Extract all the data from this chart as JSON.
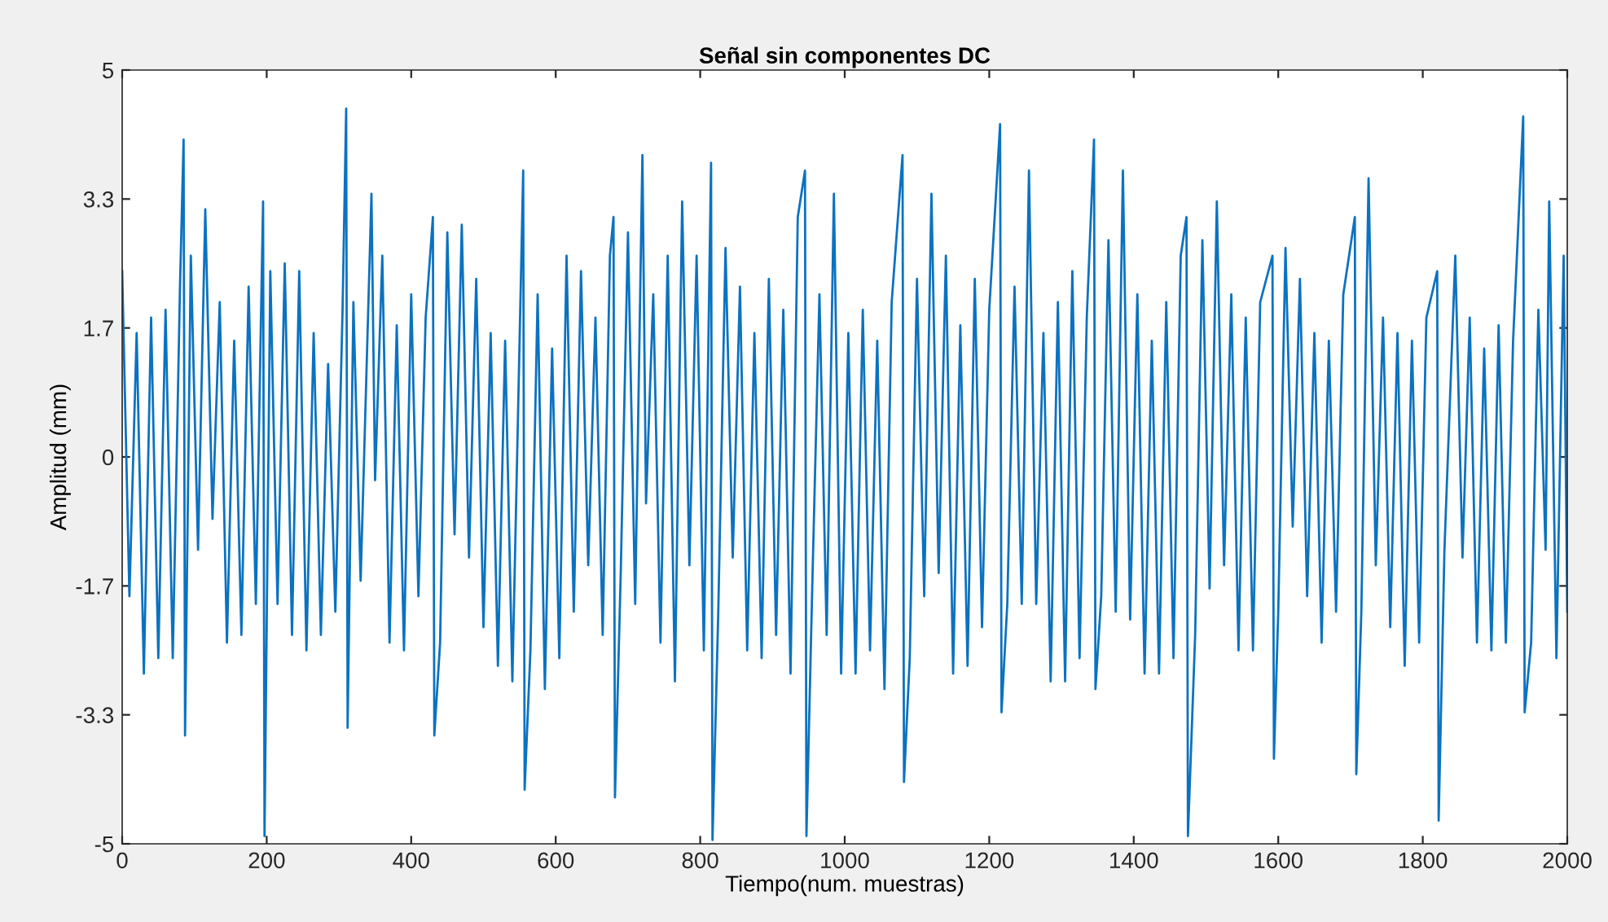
{
  "chart_data": {
    "type": "line",
    "title": "Señal sin componentes DC",
    "xlabel": "Tiempo(num. muestras)",
    "ylabel": "Amplitud (mm)",
    "xlim": [
      0,
      2000
    ],
    "xticks": [
      0,
      200,
      400,
      600,
      800,
      1000,
      1200,
      1400,
      1600,
      1800,
      2000
    ],
    "ylim": [
      -5,
      5
    ],
    "yticks": [
      -5,
      {
        "value": -3.333,
        "label": "-3.3"
      },
      {
        "value": -1.667,
        "label": "-1.7"
      },
      0,
      {
        "value": 1.667,
        "label": "1.7"
      },
      {
        "value": 3.333,
        "label": "3.3"
      },
      5
    ],
    "marker": "none",
    "line_style": "solid",
    "series": [
      {
        "color": "#0b72c0",
        "x": [
          0,
          10,
          20,
          30,
          40,
          50,
          60,
          70,
          80,
          85,
          87,
          95,
          105,
          115,
          125,
          135,
          145,
          155,
          165,
          175,
          185,
          195,
          197,
          205,
          215,
          225,
          235,
          245,
          255,
          265,
          275,
          285,
          295,
          305,
          310,
          312,
          320,
          330,
          345,
          350,
          360,
          370,
          380,
          390,
          400,
          410,
          420,
          430,
          432,
          440,
          450,
          460,
          470,
          480,
          490,
          500,
          510,
          520,
          530,
          540,
          550,
          555,
          557,
          565,
          575,
          585,
          595,
          605,
          615,
          625,
          635,
          645,
          655,
          665,
          675,
          680,
          682,
          690,
          700,
          710,
          720,
          725,
          735,
          745,
          755,
          765,
          775,
          785,
          795,
          805,
          815,
          817,
          825,
          835,
          845,
          855,
          865,
          875,
          885,
          895,
          905,
          915,
          925,
          935,
          945,
          947,
          955,
          965,
          975,
          985,
          995,
          1005,
          1015,
          1025,
          1035,
          1045,
          1055,
          1065,
          1080,
          1082,
          1090,
          1100,
          1110,
          1120,
          1130,
          1140,
          1150,
          1160,
          1170,
          1180,
          1190,
          1200,
          1215,
          1217,
          1225,
          1235,
          1245,
          1255,
          1265,
          1275,
          1285,
          1295,
          1305,
          1315,
          1325,
          1335,
          1345,
          1347,
          1355,
          1365,
          1375,
          1385,
          1395,
          1405,
          1415,
          1425,
          1435,
          1445,
          1455,
          1465,
          1473,
          1475,
          1485,
          1495,
          1505,
          1515,
          1525,
          1535,
          1545,
          1555,
          1565,
          1575,
          1592,
          1594,
          1600,
          1610,
          1620,
          1630,
          1640,
          1650,
          1660,
          1670,
          1680,
          1690,
          1706,
          1708,
          1715,
          1725,
          1735,
          1745,
          1755,
          1765,
          1775,
          1785,
          1795,
          1805,
          1820,
          1822,
          1830,
          1845,
          1855,
          1865,
          1875,
          1885,
          1895,
          1905,
          1915,
          1925,
          1939,
          1941,
          1950,
          1960,
          1970,
          1975,
          1985,
          1995,
          2000
        ],
        "values": [
          2.4,
          -1.8,
          1.6,
          -2.8,
          1.8,
          -2.6,
          1.9,
          -2.6,
          2.2,
          4.1,
          -3.6,
          2.6,
          -1.2,
          3.2,
          -0.8,
          2.0,
          -2.4,
          1.5,
          -2.3,
          2.2,
          -1.9,
          3.3,
          -4.9,
          2.4,
          -1.9,
          2.5,
          -2.3,
          2.4,
          -2.5,
          1.6,
          -2.3,
          1.2,
          -2.0,
          1.9,
          4.5,
          -3.5,
          2.0,
          -1.6,
          3.4,
          -0.3,
          2.6,
          -2.4,
          1.7,
          -2.5,
          2.1,
          -1.8,
          1.8,
          3.1,
          -3.6,
          -2.4,
          2.9,
          -1.0,
          3.0,
          -1.3,
          2.3,
          -2.2,
          1.6,
          -2.7,
          1.5,
          -2.9,
          1.5,
          3.7,
          -4.3,
          -2.5,
          2.1,
          -3.0,
          1.4,
          -2.6,
          2.6,
          -2.0,
          2.4,
          -1.4,
          1.8,
          -2.3,
          2.6,
          3.1,
          -4.4,
          -1.5,
          2.9,
          -1.9,
          3.9,
          -0.6,
          2.1,
          -2.4,
          2.6,
          -2.9,
          3.3,
          -1.4,
          2.6,
          -2.5,
          3.8,
          -4.95,
          -2.0,
          2.7,
          -1.3,
          2.2,
          -2.5,
          1.6,
          -2.6,
          2.3,
          -2.3,
          1.9,
          -2.8,
          3.1,
          3.7,
          -4.9,
          -1.7,
          2.1,
          -2.3,
          3.4,
          -2.8,
          1.6,
          -2.8,
          1.9,
          -2.5,
          1.5,
          -3.0,
          2.0,
          3.9,
          -4.2,
          -2.6,
          2.3,
          -1.8,
          3.4,
          -1.5,
          2.6,
          -2.8,
          1.7,
          -2.7,
          2.3,
          -2.2,
          1.9,
          4.3,
          -3.3,
          -1.9,
          2.2,
          -1.9,
          3.7,
          -1.9,
          1.6,
          -2.9,
          2.0,
          -2.9,
          2.4,
          -2.6,
          1.8,
          4.1,
          -3.0,
          -1.8,
          2.8,
          -2.0,
          3.7,
          -2.1,
          2.1,
          -2.8,
          1.5,
          -2.8,
          2.0,
          -2.6,
          2.6,
          3.1,
          -4.9,
          -2.3,
          2.8,
          -1.7,
          3.3,
          -1.4,
          2.1,
          -2.5,
          1.8,
          -2.5,
          2.0,
          2.6,
          -3.9,
          -2.0,
          2.7,
          -0.9,
          2.3,
          -1.8,
          1.6,
          -2.4,
          1.5,
          -2.0,
          2.1,
          3.1,
          -4.1,
          -2.0,
          3.6,
          -1.4,
          1.8,
          -2.2,
          1.6,
          -2.7,
          1.5,
          -2.4,
          1.8,
          2.4,
          -4.7,
          -1.2,
          2.6,
          -1.3,
          1.8,
          -2.4,
          1.4,
          -2.5,
          1.7,
          -2.4,
          1.5,
          4.4,
          -3.3,
          -2.4,
          1.9,
          -1.2,
          3.3,
          -2.6,
          2.6,
          -2.0
        ]
      }
    ]
  }
}
